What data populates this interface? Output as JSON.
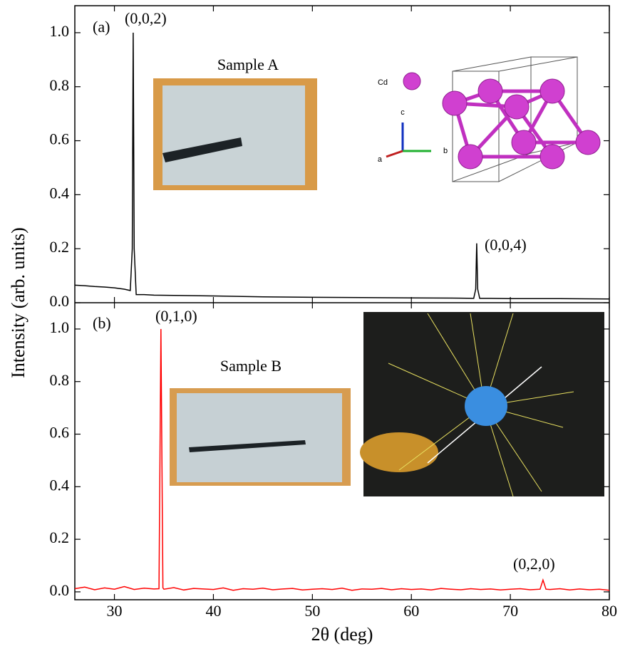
{
  "chart_data": [
    {
      "type": "line",
      "ylabel": "Intensity (arb. units)",
      "panel_label": "(a)",
      "peak_labels": [
        "(0,0,2)",
        "(0,0,4)"
      ],
      "inset_title": "Sample A",
      "inset_labels": [
        "Cd",
        "a",
        "b",
        "c"
      ],
      "color": "#000000",
      "x": [
        26,
        27,
        28,
        29,
        30,
        31,
        31.6,
        31.8,
        31.9,
        32.0,
        32.2,
        33,
        34,
        36,
        38,
        40,
        45,
        50,
        55,
        60,
        65,
        66.3,
        66.5,
        66.6,
        66.7,
        66.9,
        68,
        70,
        75,
        80
      ],
      "values": [
        0.065,
        0.063,
        0.06,
        0.058,
        0.055,
        0.05,
        0.045,
        0.2,
        1.0,
        0.2,
        0.03,
        0.03,
        0.028,
        0.027,
        0.026,
        0.025,
        0.022,
        0.02,
        0.019,
        0.018,
        0.017,
        0.016,
        0.05,
        0.22,
        0.05,
        0.016,
        0.016,
        0.015,
        0.015,
        0.014
      ],
      "xlim": [
        26,
        80
      ],
      "xticks": [
        30,
        40,
        50,
        60,
        70,
        80
      ],
      "ylim": [
        0,
        1.1
      ],
      "yticks": [
        {
          "value": 0,
          "label": "0.0"
        },
        0.2,
        0.4,
        0.6,
        0.8,
        {
          "value": 1,
          "label": "1.0"
        }
      ]
    },
    {
      "type": "line",
      "xlabel": "2θ (deg)",
      "panel_label": "(b)",
      "peak_labels": [
        "(0,1,0)",
        "(0,2,0)"
      ],
      "inset_title": "Sample B",
      "color": "#ff0000",
      "x": [
        26,
        27,
        28,
        29,
        30,
        31,
        32,
        33,
        34,
        34.5,
        34.7,
        34.9,
        35,
        36,
        37,
        38,
        39,
        40,
        41,
        42,
        43,
        44,
        45,
        46,
        47,
        48,
        49,
        50,
        51,
        52,
        53,
        54,
        55,
        56,
        57,
        58,
        59,
        60,
        61,
        62,
        63,
        64,
        65,
        66,
        67,
        68,
        69,
        70,
        71,
        72,
        73,
        73.3,
        73.6,
        74,
        75,
        76,
        77,
        78,
        79,
        80
      ],
      "values": [
        0.012,
        0.018,
        0.008,
        0.015,
        0.01,
        0.02,
        0.009,
        0.014,
        0.011,
        0.012,
        1.0,
        0.015,
        0.01,
        0.016,
        0.007,
        0.013,
        0.011,
        0.009,
        0.015,
        0.006,
        0.012,
        0.01,
        0.014,
        0.008,
        0.011,
        0.013,
        0.007,
        0.01,
        0.012,
        0.009,
        0.014,
        0.006,
        0.011,
        0.01,
        0.013,
        0.008,
        0.012,
        0.009,
        0.011,
        0.007,
        0.013,
        0.01,
        0.008,
        0.012,
        0.009,
        0.011,
        0.007,
        0.01,
        0.012,
        0.008,
        0.01,
        0.045,
        0.01,
        0.009,
        0.012,
        0.007,
        0.011,
        0.008,
        0.01,
        0.006
      ],
      "xlim": [
        26,
        80
      ],
      "xticks": [
        30,
        40,
        50,
        60,
        70,
        80
      ],
      "ylim": [
        -0.03,
        1.1
      ],
      "yticks": [
        {
          "value": 0,
          "label": "0.0"
        },
        0.2,
        0.4,
        0.6,
        0.8,
        {
          "value": 1,
          "label": "1.0"
        }
      ]
    }
  ]
}
